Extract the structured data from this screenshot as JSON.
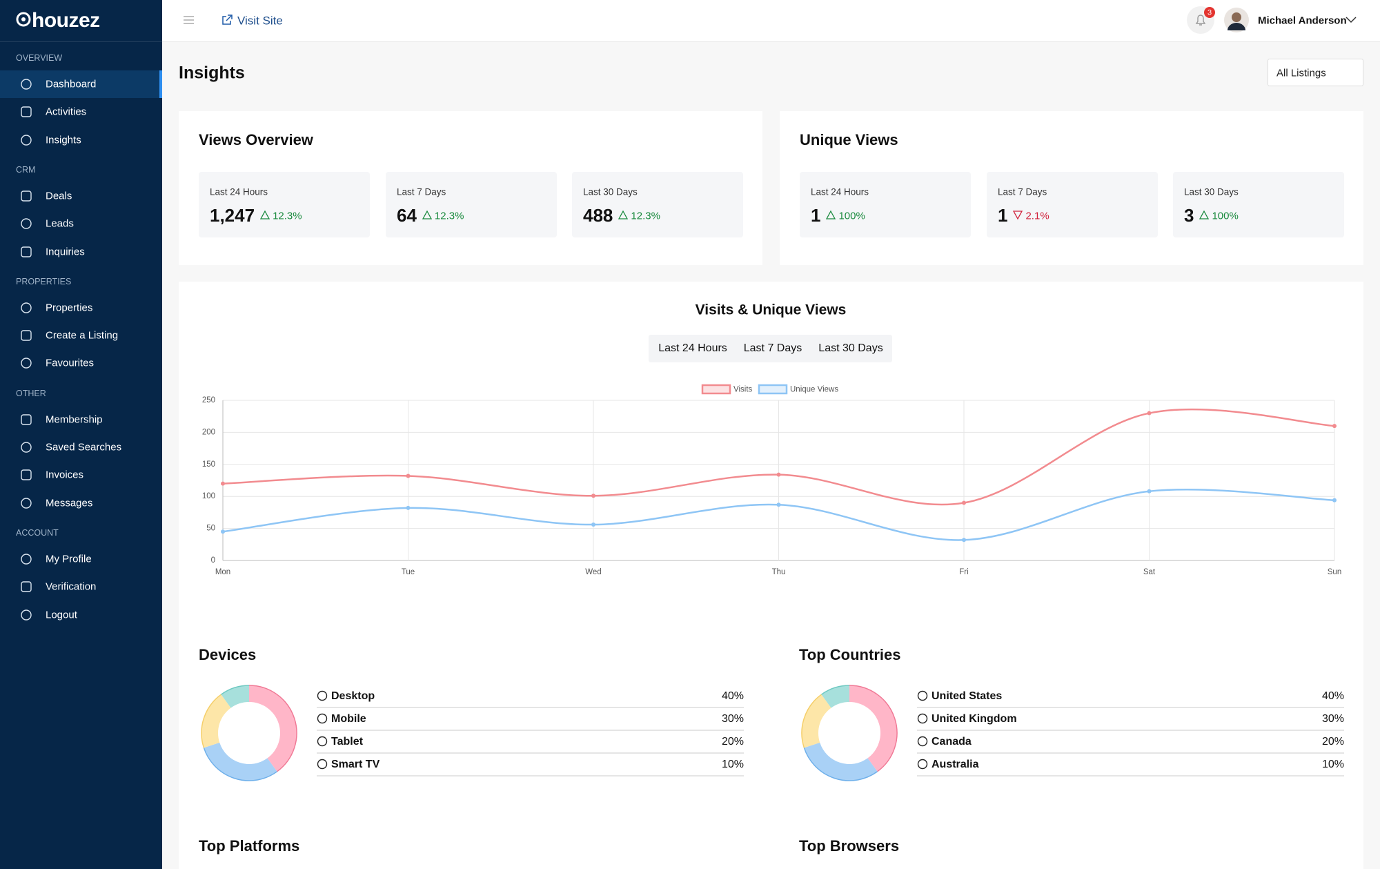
{
  "sidebar": {
    "logo": "houzez",
    "sections": [
      {
        "title": "OVERVIEW",
        "items": [
          {
            "label": "Dashboard",
            "active": true
          },
          {
            "label": "Activities"
          },
          {
            "label": "Insights"
          }
        ]
      },
      {
        "title": "CRM",
        "items": [
          {
            "label": "Deals"
          },
          {
            "label": "Leads"
          },
          {
            "label": "Inquiries"
          }
        ]
      },
      {
        "title": "PROPERTIES",
        "items": [
          {
            "label": "Properties"
          },
          {
            "label": "Create a Listing"
          },
          {
            "label": "Favourites"
          }
        ]
      },
      {
        "title": "OTHER",
        "items": [
          {
            "label": "Membership"
          },
          {
            "label": "Saved Searches"
          },
          {
            "label": "Invoices"
          },
          {
            "label": "Messages"
          }
        ]
      },
      {
        "title": "ACCOUNT",
        "items": [
          {
            "label": "My Profile"
          },
          {
            "label": "Verification"
          },
          {
            "label": "Logout"
          }
        ]
      }
    ]
  },
  "topbar": {
    "visit_site": "Visit Site",
    "notifications": "3",
    "user": "Michael Anderson"
  },
  "page": {
    "title": "Insights",
    "filter": "All Listings"
  },
  "stats": [
    {
      "title": "Views Overview",
      "cards": [
        {
          "label": "Last 24 Hours",
          "value": "1,247",
          "change": "12.3%",
          "trend": "up"
        },
        {
          "label": "Last 7 Days",
          "value": "64",
          "change": "12.3%",
          "trend": "up"
        },
        {
          "label": "Last 30 Days",
          "value": "488",
          "change": "12.3%",
          "trend": "up"
        }
      ]
    },
    {
      "title": "Unique Views",
      "cards": [
        {
          "label": "Last 24 Hours",
          "value": "1",
          "change": "100%",
          "trend": "up"
        },
        {
          "label": "Last 7 Days",
          "value": "1",
          "change": "2.1%",
          "trend": "down"
        },
        {
          "label": "Last 30 Days",
          "value": "3",
          "change": "100%",
          "trend": "up"
        }
      ]
    }
  ],
  "chart_data": [
    {
      "type": "line",
      "title": "Visits & Unique Views",
      "tabs": [
        "Last 24 Hours",
        "Last 7 Days",
        "Last 30 Days"
      ],
      "categories": [
        "Mon",
        "Tue",
        "Wed",
        "Thu",
        "Fri",
        "Sat",
        "Sun"
      ],
      "series": [
        {
          "name": "Visits",
          "color": "#f28b8f",
          "values": [
            120,
            132,
            101,
            134,
            90,
            230,
            210
          ]
        },
        {
          "name": "Unique Views",
          "color": "#8ec5f5",
          "values": [
            45,
            82,
            56,
            87,
            32,
            108,
            94
          ]
        }
      ],
      "ylim": [
        0,
        250
      ],
      "yticks": [
        0,
        50,
        100,
        150,
        200,
        250
      ],
      "grid": true
    },
    {
      "type": "pie",
      "title": "Devices",
      "categories": [
        "Desktop",
        "Mobile",
        "Tablet",
        "Smart TV"
      ],
      "values": [
        40,
        30,
        20,
        10
      ],
      "value_labels": [
        "40%",
        "30%",
        "20%",
        "10%"
      ],
      "colors": [
        "#ffb6c8",
        "#a9d1f6",
        "#fde6a8",
        "#a7e0dc"
      ]
    },
    {
      "type": "pie",
      "title": "Top Countries",
      "categories": [
        "United States",
        "United Kingdom",
        "Canada",
        "Australia"
      ],
      "values": [
        40,
        30,
        20,
        10
      ],
      "value_labels": [
        "40%",
        "30%",
        "20%",
        "10%"
      ],
      "colors": [
        "#ffb6c8",
        "#a9d1f6",
        "#fde6a8",
        "#a7e0dc"
      ]
    }
  ],
  "bottom_titles": [
    "Top Platforms",
    "Top Browsers"
  ]
}
